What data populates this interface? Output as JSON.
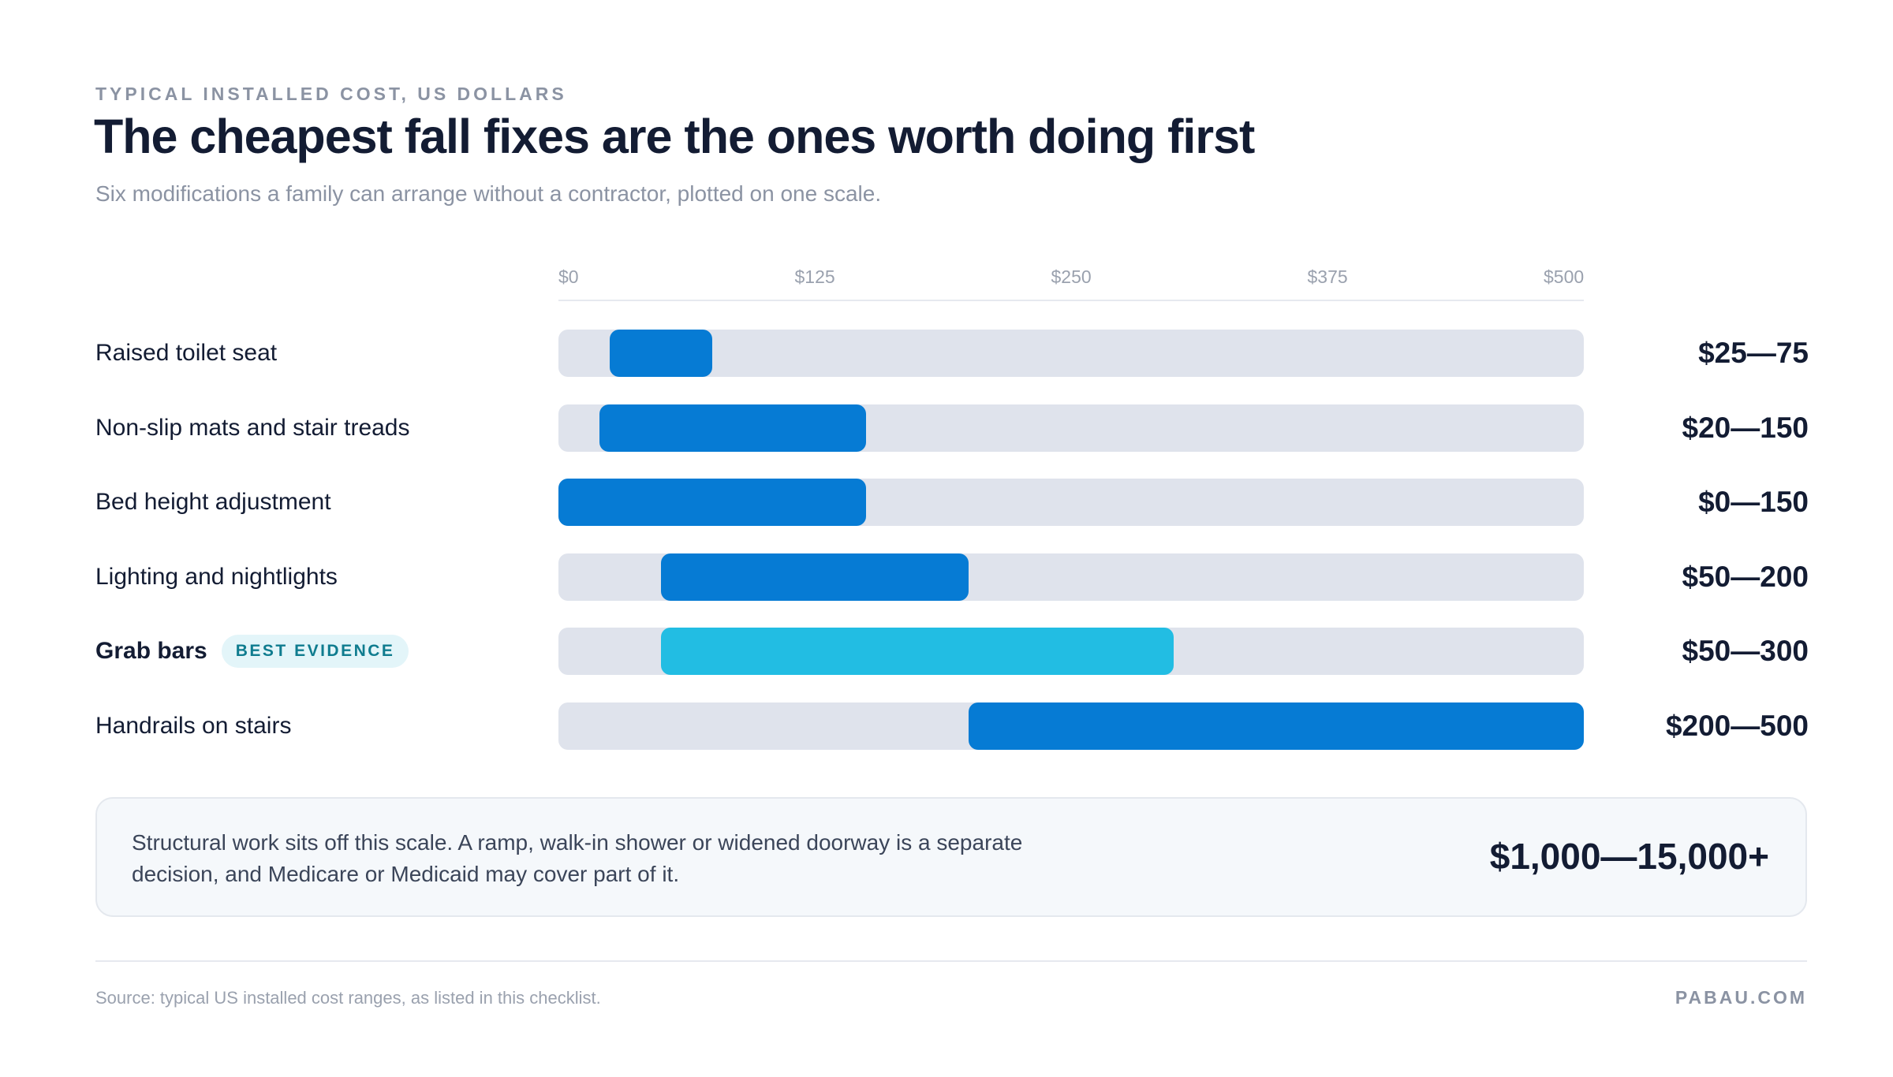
{
  "header": {
    "eyebrow": "TYPICAL INSTALLED COST, US DOLLARS",
    "title": "The cheapest fall fixes are the ones worth doing first",
    "subtitle": "Six modifications a family can arrange without a contractor, plotted on one scale."
  },
  "chart_data": {
    "type": "bar",
    "orientation": "horizontal-range",
    "title": "The cheapest fall fixes are the ones worth doing first",
    "xlim": [
      0,
      500
    ],
    "ticks": [
      0,
      125,
      250,
      375,
      500
    ],
    "tick_labels": [
      "$0",
      "$125",
      "$250",
      "$375",
      "$500"
    ],
    "categories": [
      "Raised toilet seat",
      "Non-slip mats and stair treads",
      "Bed height adjustment",
      "Lighting and nightlights",
      "Grab bars",
      "Handrails on stairs"
    ],
    "series": [
      {
        "ranges": [
          [
            25,
            75
          ],
          [
            20,
            150
          ],
          [
            0,
            150
          ],
          [
            50,
            200
          ],
          [
            50,
            300
          ],
          [
            200,
            500
          ]
        ],
        "range_labels": [
          "$25—75",
          "$20—150",
          "$0—150",
          "$50—200",
          "$50—300",
          "$200—500"
        ]
      }
    ],
    "highlight_index": 4,
    "highlight_badge": "BEST EVIDENCE",
    "colors": {
      "bar": "#067bd4",
      "highlight": "#22bde3",
      "track": "#dfe3ec"
    }
  },
  "note": {
    "text": "Structural work sits off this scale. A ramp, walk-in shower or widened doorway is a separate decision, and Medicare or Medicaid may cover part of it.",
    "value": "$1,000—15,000+"
  },
  "footer": {
    "source": "Source: typical US installed cost ranges, as listed in this checklist.",
    "brand": "PABAU.COM"
  }
}
